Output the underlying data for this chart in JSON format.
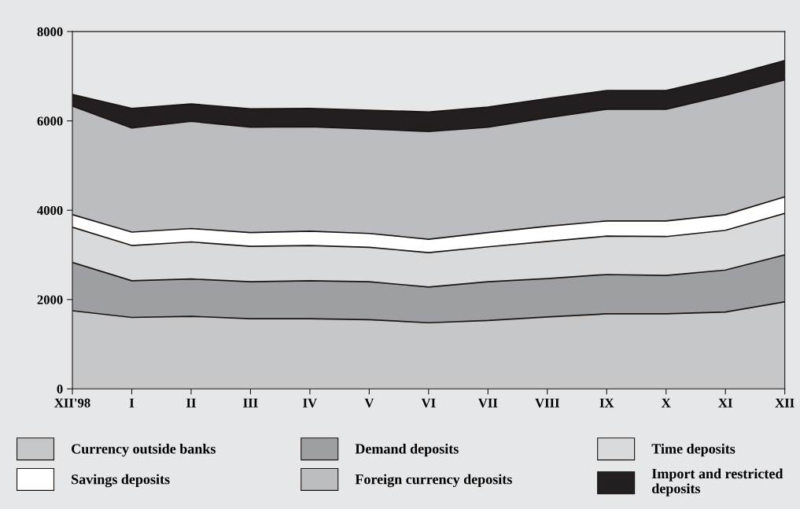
{
  "chart_data": {
    "type": "area",
    "stacked": true,
    "categories": [
      "XII'98",
      "I",
      "II",
      "III",
      "IV",
      "V",
      "VI",
      "VII",
      "VIII",
      "IX",
      "X",
      "XI",
      "XII"
    ],
    "ylim": [
      0,
      8000
    ],
    "yticks": [
      0,
      2000,
      4000,
      6000,
      8000
    ],
    "grid": false,
    "legend": "bottom",
    "series": [
      {
        "name": "Currency outside banks",
        "color": "#c6c7c9",
        "values": [
          1750,
          1600,
          1625,
          1570,
          1570,
          1550,
          1480,
          1530,
          1610,
          1680,
          1680,
          1720,
          1950
        ]
      },
      {
        "name": "Demand deposits",
        "color": "#9e9fa3",
        "values": [
          1080,
          820,
          835,
          830,
          850,
          850,
          800,
          870,
          860,
          880,
          860,
          940,
          1050
        ]
      },
      {
        "name": "Time deposits",
        "color": "#d9dadc",
        "values": [
          790,
          790,
          830,
          790,
          790,
          770,
          770,
          780,
          830,
          860,
          870,
          890,
          930
        ]
      },
      {
        "name": "Savings deposits",
        "color": "#ffffff",
        "values": [
          280,
          300,
          300,
          310,
          320,
          310,
          300,
          320,
          340,
          340,
          350,
          350,
          370
        ]
      },
      {
        "name": "Foreign currency deposits",
        "color": "#bcbdc1",
        "values": [
          2430,
          2330,
          2400,
          2360,
          2340,
          2340,
          2410,
          2360,
          2430,
          2500,
          2500,
          2670,
          2620
        ]
      },
      {
        "name": "Import and restricted\ndeposits",
        "color": "#231f20",
        "values": [
          260,
          440,
          390,
          410,
          410,
          420,
          440,
          450,
          430,
          420,
          420,
          420,
          430
        ]
      }
    ]
  }
}
